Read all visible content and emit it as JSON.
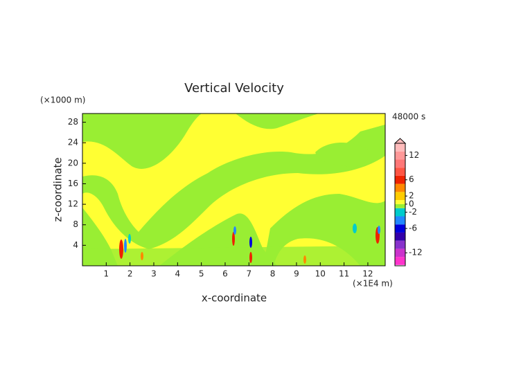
{
  "chart_data": {
    "type": "contour",
    "title": "Vertical Velocity",
    "time_label": "48000 s",
    "x_label": "x-coordinate",
    "x_unit": "(×1E4 m)",
    "y_label": "z-coordinate",
    "y_unit": "(×1000 m)",
    "xlim": [
      0,
      12.73
    ],
    "xticks": [
      1,
      2,
      3,
      4,
      5,
      6,
      7,
      8,
      9,
      10,
      11,
      12
    ],
    "ylim": [
      0,
      29.7
    ],
    "yticks": [
      4,
      8,
      12,
      16,
      20,
      24,
      28
    ],
    "colorbar": {
      "lim": [
        -15.2,
        15
      ],
      "ticks": [
        -12,
        -6,
        -2,
        0,
        2,
        6,
        12
      ],
      "levels": [
        -15,
        -13,
        -11,
        -9,
        -7,
        -5,
        -3,
        -1,
        0,
        1,
        3,
        5,
        7,
        9,
        11,
        13,
        15
      ],
      "colors": [
        "#ff33cc",
        "#cc33cc",
        "#8833cc",
        "#3300aa",
        "#0000dd",
        "#2288ff",
        "#00cccc",
        "#99ee33",
        "#ffff33",
        "#ffcc00",
        "#ff8800",
        "#ee2200",
        "#ff5544",
        "#ff7777",
        "#ff9999",
        "#ffbbbb"
      ]
    }
  }
}
